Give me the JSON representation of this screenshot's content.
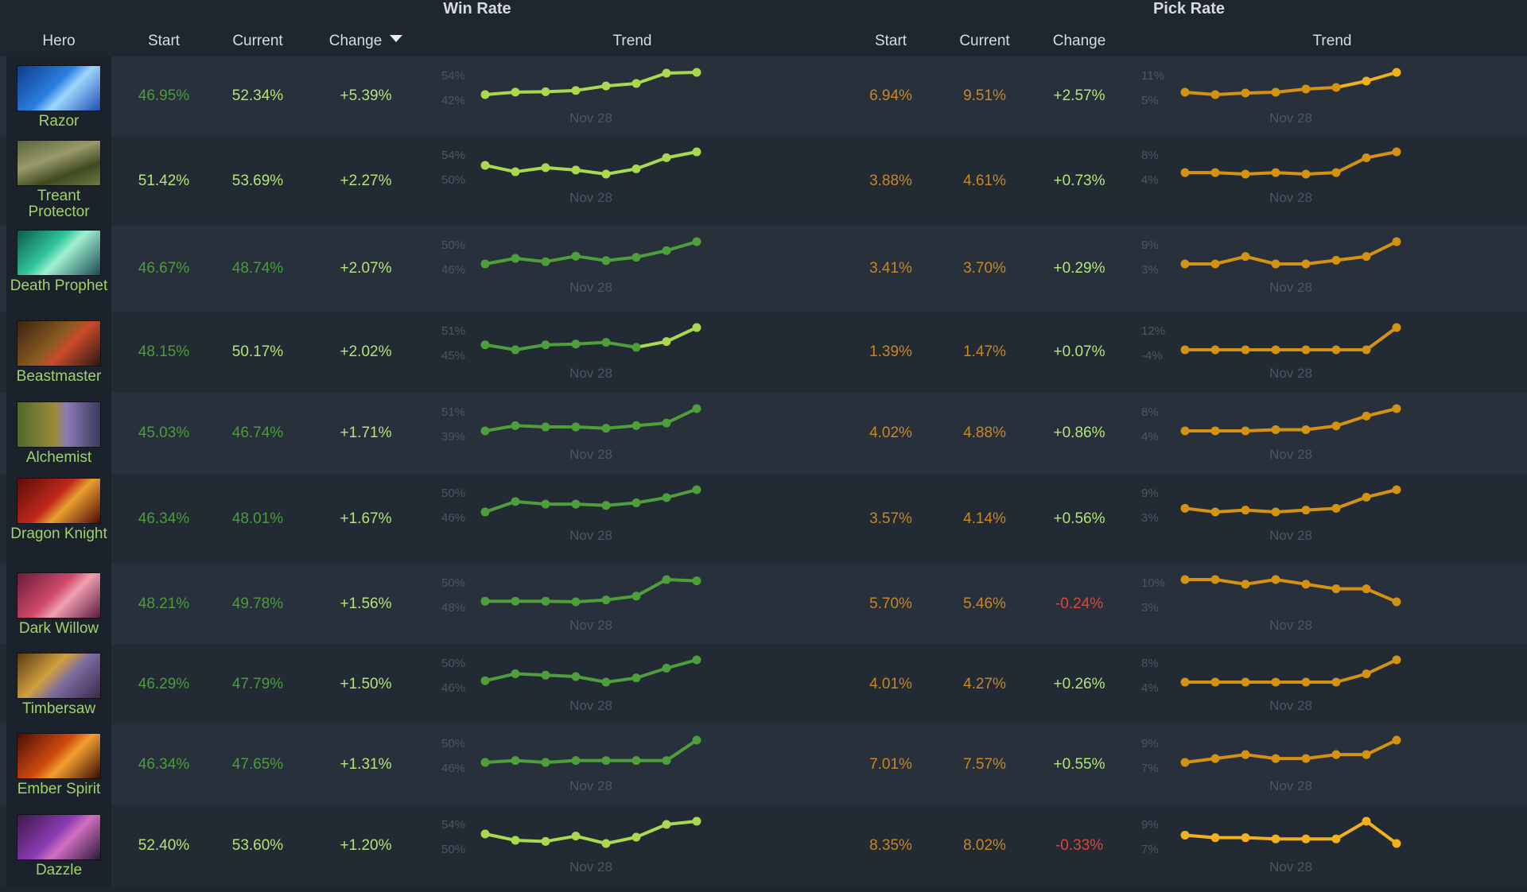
{
  "headers": {
    "win_rate": "Win Rate",
    "pick_rate": "Pick Rate",
    "hero": "Hero",
    "wr_start": "Start",
    "wr_current": "Current",
    "wr_change": "Change",
    "wr_trend": "Trend",
    "pr_start": "Start",
    "pr_current": "Current",
    "pr_change": "Change",
    "pr_trend": "Trend"
  },
  "colors": {
    "wr_start_bright": "#b4e37a",
    "wr_start_dim": "#4e9b3e",
    "positive": "#b4e37a",
    "negative": "#e0453a",
    "pick_text": "#c9871f",
    "wr_line_bright": "#a8d94e",
    "wr_line_dim": "#4f9e3c",
    "pr_line": "#d39212",
    "pr_line_bright": "#f2b01e",
    "axis_text": "#4d5561"
  },
  "heroes": [
    {
      "name": "Razor",
      "portrait": "razor-portrait",
      "wr_start": "46.95%",
      "wr_current": "52.34%",
      "wr_change": "+5.39%",
      "pr_start": "6.94%",
      "pr_current": "9.51%",
      "pr_change": "+2.57%",
      "wr_trend": {
        "max_label": "54%",
        "min_label": "42%",
        "date": "Nov 28",
        "values": [
          46.9,
          47.5,
          47.6,
          47.9,
          49.0,
          49.6,
          52.1,
          52.3
        ],
        "color": "bright"
      },
      "pr_trend": {
        "max_label": "11%",
        "min_label": "5%",
        "date": "Nov 28",
        "values": [
          7.0,
          6.7,
          6.9,
          7.0,
          7.4,
          7.6,
          8.4,
          9.5
        ],
        "color": "mixed"
      }
    },
    {
      "name": "Treant Protector",
      "portrait": "treant-portrait",
      "wr_start": "51.42%",
      "wr_current": "53.69%",
      "wr_change": "+2.27%",
      "pr_start": "3.88%",
      "pr_current": "4.61%",
      "pr_change": "+0.73%",
      "wr_trend": {
        "max_label": "54%",
        "min_label": "50%",
        "date": "Nov 28",
        "values": [
          51.4,
          50.3,
          51.0,
          50.6,
          49.9,
          50.8,
          52.7,
          53.7
        ],
        "color": "bright"
      },
      "pr_trend": {
        "max_label": "8%",
        "min_label": "4%",
        "date": "Nov 28",
        "values": [
          3.9,
          3.9,
          3.85,
          3.9,
          3.85,
          3.9,
          4.4,
          4.6
        ],
        "color": "dim"
      }
    },
    {
      "name": "Death Prophet",
      "portrait": "death-prophet-portrait",
      "wr_start": "46.67%",
      "wr_current": "48.74%",
      "wr_change": "+2.07%",
      "pr_start": "3.41%",
      "pr_current": "3.70%",
      "pr_change": "+0.29%",
      "wr_trend": {
        "max_label": "50%",
        "min_label": "46%",
        "date": "Nov 28",
        "values": [
          46.7,
          47.2,
          46.9,
          47.4,
          47.0,
          47.3,
          47.9,
          48.7
        ],
        "color": "dim"
      },
      "pr_trend": {
        "max_label": "9%",
        "min_label": "3%",
        "date": "Nov 28",
        "values": [
          3.4,
          3.4,
          3.5,
          3.4,
          3.4,
          3.45,
          3.5,
          3.7
        ],
        "color": "dim"
      }
    },
    {
      "name": "Beastmaster",
      "portrait": "beastmaster-portrait",
      "wr_start": "48.15%",
      "wr_current": "50.17%",
      "wr_change": "+2.02%",
      "pr_start": "1.39%",
      "pr_current": "1.47%",
      "pr_change": "+0.07%",
      "wr_trend": {
        "max_label": "51%",
        "min_label": "45%",
        "date": "Nov 28",
        "values": [
          48.1,
          47.5,
          48.1,
          48.2,
          48.4,
          47.8,
          48.5,
          50.2
        ],
        "color": "mixed"
      },
      "pr_trend": {
        "max_label": "12%",
        "min_label": "-4%",
        "date": "Nov 28",
        "values": [
          1.4,
          1.4,
          1.4,
          1.4,
          1.4,
          1.4,
          1.4,
          1.47
        ],
        "color": "dim"
      }
    },
    {
      "name": "Alchemist",
      "portrait": "alchemist-portrait",
      "wr_start": "45.03%",
      "wr_current": "46.74%",
      "wr_change": "+1.71%",
      "pr_start": "4.02%",
      "pr_current": "4.88%",
      "pr_change": "+0.86%",
      "wr_trend": {
        "max_label": "51%",
        "min_label": "39%",
        "date": "Nov 28",
        "values": [
          45.0,
          45.4,
          45.3,
          45.3,
          45.2,
          45.4,
          45.6,
          46.7
        ],
        "color": "dim"
      },
      "pr_trend": {
        "max_label": "8%",
        "min_label": "4%",
        "date": "Nov 28",
        "values": [
          4.0,
          4.0,
          4.0,
          4.05,
          4.05,
          4.2,
          4.6,
          4.9
        ],
        "color": "dim"
      }
    },
    {
      "name": "Dragon Knight",
      "portrait": "dragon-knight-portrait",
      "wr_start": "46.34%",
      "wr_current": "48.01%",
      "wr_change": "+1.67%",
      "pr_start": "3.57%",
      "pr_current": "4.14%",
      "pr_change": "+0.56%",
      "wr_trend": {
        "max_label": "50%",
        "min_label": "46%",
        "date": "Nov 28",
        "values": [
          46.3,
          47.1,
          46.9,
          46.9,
          46.8,
          47.0,
          47.4,
          48.0
        ],
        "color": "dim"
      },
      "pr_trend": {
        "max_label": "9%",
        "min_label": "3%",
        "date": "Nov 28",
        "values": [
          3.6,
          3.5,
          3.55,
          3.5,
          3.55,
          3.6,
          3.9,
          4.1
        ],
        "color": "dim"
      }
    },
    {
      "name": "Dark Willow",
      "portrait": "dark-willow-portrait",
      "wr_start": "48.21%",
      "wr_current": "49.78%",
      "wr_change": "+1.56%",
      "pr_start": "5.70%",
      "pr_current": "5.46%",
      "pr_change": "-0.24%",
      "wr_trend": {
        "max_label": "50%",
        "min_label": "48%",
        "date": "Nov 28",
        "values": [
          48.2,
          48.2,
          48.2,
          48.15,
          48.3,
          48.6,
          49.9,
          49.8
        ],
        "color": "dim"
      },
      "pr_trend": {
        "max_label": "10%",
        "min_label": "3%",
        "date": "Nov 28",
        "values": [
          5.7,
          5.7,
          5.65,
          5.7,
          5.65,
          5.6,
          5.6,
          5.46
        ],
        "color": "dim"
      }
    },
    {
      "name": "Timbersaw",
      "portrait": "timbersaw-portrait",
      "wr_start": "46.29%",
      "wr_current": "47.79%",
      "wr_change": "+1.50%",
      "pr_start": "4.01%",
      "pr_current": "4.27%",
      "pr_change": "+0.26%",
      "wr_trend": {
        "max_label": "50%",
        "min_label": "46%",
        "date": "Nov 28",
        "values": [
          46.3,
          46.8,
          46.7,
          46.6,
          46.2,
          46.5,
          47.2,
          47.8
        ],
        "color": "dim"
      },
      "pr_trend": {
        "max_label": "8%",
        "min_label": "4%",
        "date": "Nov 28",
        "values": [
          4.0,
          4.0,
          4.0,
          4.0,
          4.0,
          4.0,
          4.1,
          4.27
        ],
        "color": "dim"
      }
    },
    {
      "name": "Ember Spirit",
      "portrait": "ember-spirit-portrait",
      "wr_start": "46.34%",
      "wr_current": "47.65%",
      "wr_change": "+1.31%",
      "pr_start": "7.01%",
      "pr_current": "7.57%",
      "pr_change": "+0.55%",
      "wr_trend": {
        "max_label": "50%",
        "min_label": "46%",
        "date": "Nov 28",
        "values": [
          46.4,
          46.5,
          46.4,
          46.5,
          46.5,
          46.5,
          46.5,
          47.6
        ],
        "color": "dim"
      },
      "pr_trend": {
        "max_label": "9%",
        "min_label": "7%",
        "date": "Nov 28",
        "values": [
          7.0,
          7.1,
          7.2,
          7.1,
          7.1,
          7.2,
          7.2,
          7.57
        ],
        "color": "dim"
      }
    },
    {
      "name": "Dazzle",
      "portrait": "dazzle-portrait",
      "wr_start": "52.40%",
      "wr_current": "53.60%",
      "wr_change": "+1.20%",
      "pr_start": "8.35%",
      "pr_current": "8.02%",
      "pr_change": "-0.33%",
      "wr_trend": {
        "max_label": "54%",
        "min_label": "50%",
        "date": "Nov 28",
        "values": [
          52.4,
          51.8,
          51.7,
          52.2,
          51.5,
          52.1,
          53.3,
          53.6
        ],
        "color": "bright"
      },
      "pr_trend": {
        "max_label": "9%",
        "min_label": "7%",
        "date": "Nov 28",
        "values": [
          8.35,
          8.25,
          8.25,
          8.2,
          8.2,
          8.2,
          8.9,
          8.02
        ],
        "color": "bright"
      }
    }
  ]
}
